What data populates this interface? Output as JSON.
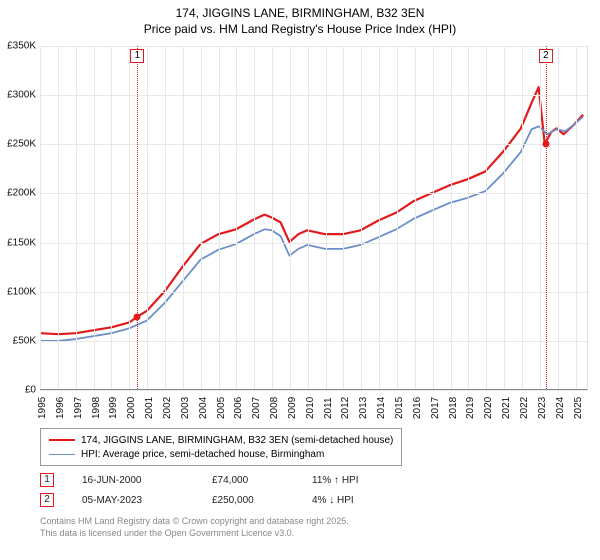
{
  "title": {
    "line1": "174, JIGGINS LANE, BIRMINGHAM, B32 3EN",
    "line2": "Price paid vs. HM Land Registry's House Price Index (HPI)"
  },
  "chart": {
    "type": "line",
    "background_color": "#ffffff",
    "grid_color": "#e8e8e8",
    "x_range": [
      1995,
      2025.7
    ],
    "x_ticks": [
      1995,
      1996,
      1997,
      1998,
      1999,
      2000,
      2001,
      2002,
      2003,
      2004,
      2005,
      2006,
      2007,
      2008,
      2009,
      2010,
      2011,
      2012,
      2013,
      2014,
      2015,
      2016,
      2017,
      2018,
      2019,
      2020,
      2021,
      2022,
      2023,
      2024,
      2025
    ],
    "y_range": [
      0,
      350000
    ],
    "y_ticks": [
      0,
      50000,
      100000,
      150000,
      200000,
      250000,
      300000,
      350000
    ],
    "y_tick_labels": [
      "£0",
      "£50K",
      "£100K",
      "£150K",
      "£200K",
      "£250K",
      "£300K",
      "£350K"
    ],
    "series": [
      {
        "name": "price_paid",
        "label": "174, JIGGINS LANE, BIRMINGHAM, B32 3EN (semi-detached house)",
        "color": "#e31a1c",
        "line_width": 2.2,
        "points": [
          [
            1995.0,
            57000
          ],
          [
            1996.0,
            56000
          ],
          [
            1997.0,
            57000
          ],
          [
            1998.0,
            60000
          ],
          [
            1999.0,
            63000
          ],
          [
            2000.0,
            68000
          ],
          [
            2000.46,
            74000
          ],
          [
            2001.0,
            80000
          ],
          [
            2002.0,
            100000
          ],
          [
            2003.0,
            125000
          ],
          [
            2004.0,
            148000
          ],
          [
            2005.0,
            158000
          ],
          [
            2006.0,
            163000
          ],
          [
            2007.0,
            173000
          ],
          [
            2007.6,
            178000
          ],
          [
            2008.0,
            175000
          ],
          [
            2008.5,
            170000
          ],
          [
            2009.0,
            150000
          ],
          [
            2009.5,
            158000
          ],
          [
            2010.0,
            162000
          ],
          [
            2011.0,
            158000
          ],
          [
            2012.0,
            158000
          ],
          [
            2013.0,
            162000
          ],
          [
            2014.0,
            172000
          ],
          [
            2015.0,
            180000
          ],
          [
            2016.0,
            192000
          ],
          [
            2017.0,
            200000
          ],
          [
            2018.0,
            208000
          ],
          [
            2019.0,
            214000
          ],
          [
            2020.0,
            222000
          ],
          [
            2021.0,
            242000
          ],
          [
            2022.0,
            266000
          ],
          [
            2022.6,
            292000
          ],
          [
            2023.0,
            308000
          ],
          [
            2023.34,
            250000
          ],
          [
            2023.7,
            262000
          ],
          [
            2024.0,
            266000
          ],
          [
            2024.4,
            260000
          ],
          [
            2025.0,
            270000
          ],
          [
            2025.5,
            280000
          ]
        ]
      },
      {
        "name": "hpi",
        "label": "HPI: Average price, semi-detached house, Birmingham",
        "color": "#6b8fc9",
        "line_width": 1.8,
        "points": [
          [
            1995.0,
            49000
          ],
          [
            1996.0,
            49000
          ],
          [
            1997.0,
            51000
          ],
          [
            1998.0,
            54000
          ],
          [
            1999.0,
            57000
          ],
          [
            2000.0,
            62000
          ],
          [
            2001.0,
            70000
          ],
          [
            2002.0,
            88000
          ],
          [
            2003.0,
            110000
          ],
          [
            2004.0,
            132000
          ],
          [
            2005.0,
            142000
          ],
          [
            2006.0,
            148000
          ],
          [
            2007.0,
            158000
          ],
          [
            2007.6,
            163000
          ],
          [
            2008.0,
            162000
          ],
          [
            2008.5,
            156000
          ],
          [
            2009.0,
            136000
          ],
          [
            2009.5,
            143000
          ],
          [
            2010.0,
            147000
          ],
          [
            2011.0,
            143000
          ],
          [
            2012.0,
            143000
          ],
          [
            2013.0,
            147000
          ],
          [
            2014.0,
            155000
          ],
          [
            2015.0,
            163000
          ],
          [
            2016.0,
            174000
          ],
          [
            2017.0,
            182000
          ],
          [
            2018.0,
            190000
          ],
          [
            2019.0,
            195000
          ],
          [
            2020.0,
            202000
          ],
          [
            2021.0,
            220000
          ],
          [
            2022.0,
            242000
          ],
          [
            2022.6,
            265000
          ],
          [
            2023.0,
            268000
          ],
          [
            2023.5,
            260000
          ],
          [
            2024.0,
            265000
          ],
          [
            2024.5,
            263000
          ],
          [
            2025.0,
            270000
          ],
          [
            2025.5,
            278000
          ]
        ]
      }
    ],
    "sale_markers": [
      {
        "n": "1",
        "x": 2000.46,
        "y": 74000,
        "color": "#e31a1c",
        "box_top": true
      },
      {
        "n": "2",
        "x": 2023.34,
        "y": 250000,
        "color": "#e31a1c",
        "box_top": true
      }
    ]
  },
  "legend": {
    "items": [
      {
        "color": "#e31a1c",
        "width": 2.2,
        "label": "174, JIGGINS LANE, BIRMINGHAM, B32 3EN (semi-detached house)"
      },
      {
        "color": "#6b8fc9",
        "width": 1.8,
        "label": "HPI: Average price, semi-detached house, Birmingham"
      }
    ]
  },
  "sales": [
    {
      "n": "1",
      "color": "#e31a1c",
      "date": "16-JUN-2000",
      "price": "£74,000",
      "delta": "11% ↑ HPI"
    },
    {
      "n": "2",
      "color": "#e31a1c",
      "date": "05-MAY-2023",
      "price": "£250,000",
      "delta": "4% ↓ HPI"
    }
  ],
  "footer": {
    "line1": "Contains HM Land Registry data © Crown copyright and database right 2025.",
    "line2": "This data is licensed under the Open Government Licence v3.0."
  }
}
